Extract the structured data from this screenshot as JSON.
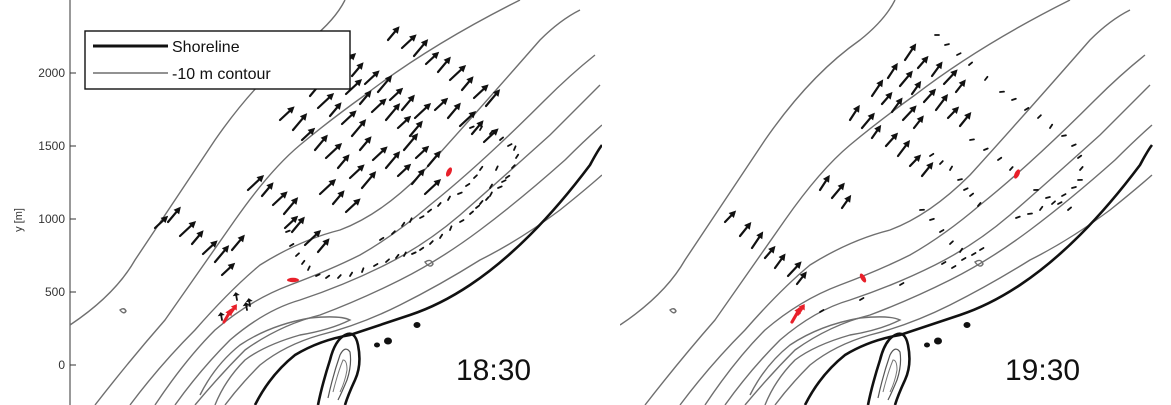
{
  "chart_data": {
    "type": "map-vector",
    "y_axis": {
      "label": "y [m]",
      "ticks": [
        0,
        500,
        1000,
        1500,
        2000
      ]
    },
    "legend": {
      "placement": "top-left",
      "items": [
        {
          "label": "Shoreline",
          "style": "thick-black-line"
        },
        {
          "label": "-10 m contour",
          "style": "thin-gray-line"
        }
      ]
    },
    "colors": {
      "shoreline": "#111111",
      "contour": "#6f6f6f",
      "arrow": "#111111",
      "highlight": "#e8202a"
    },
    "panels": [
      {
        "time": "18:30"
      },
      {
        "time": "19:30"
      }
    ]
  }
}
